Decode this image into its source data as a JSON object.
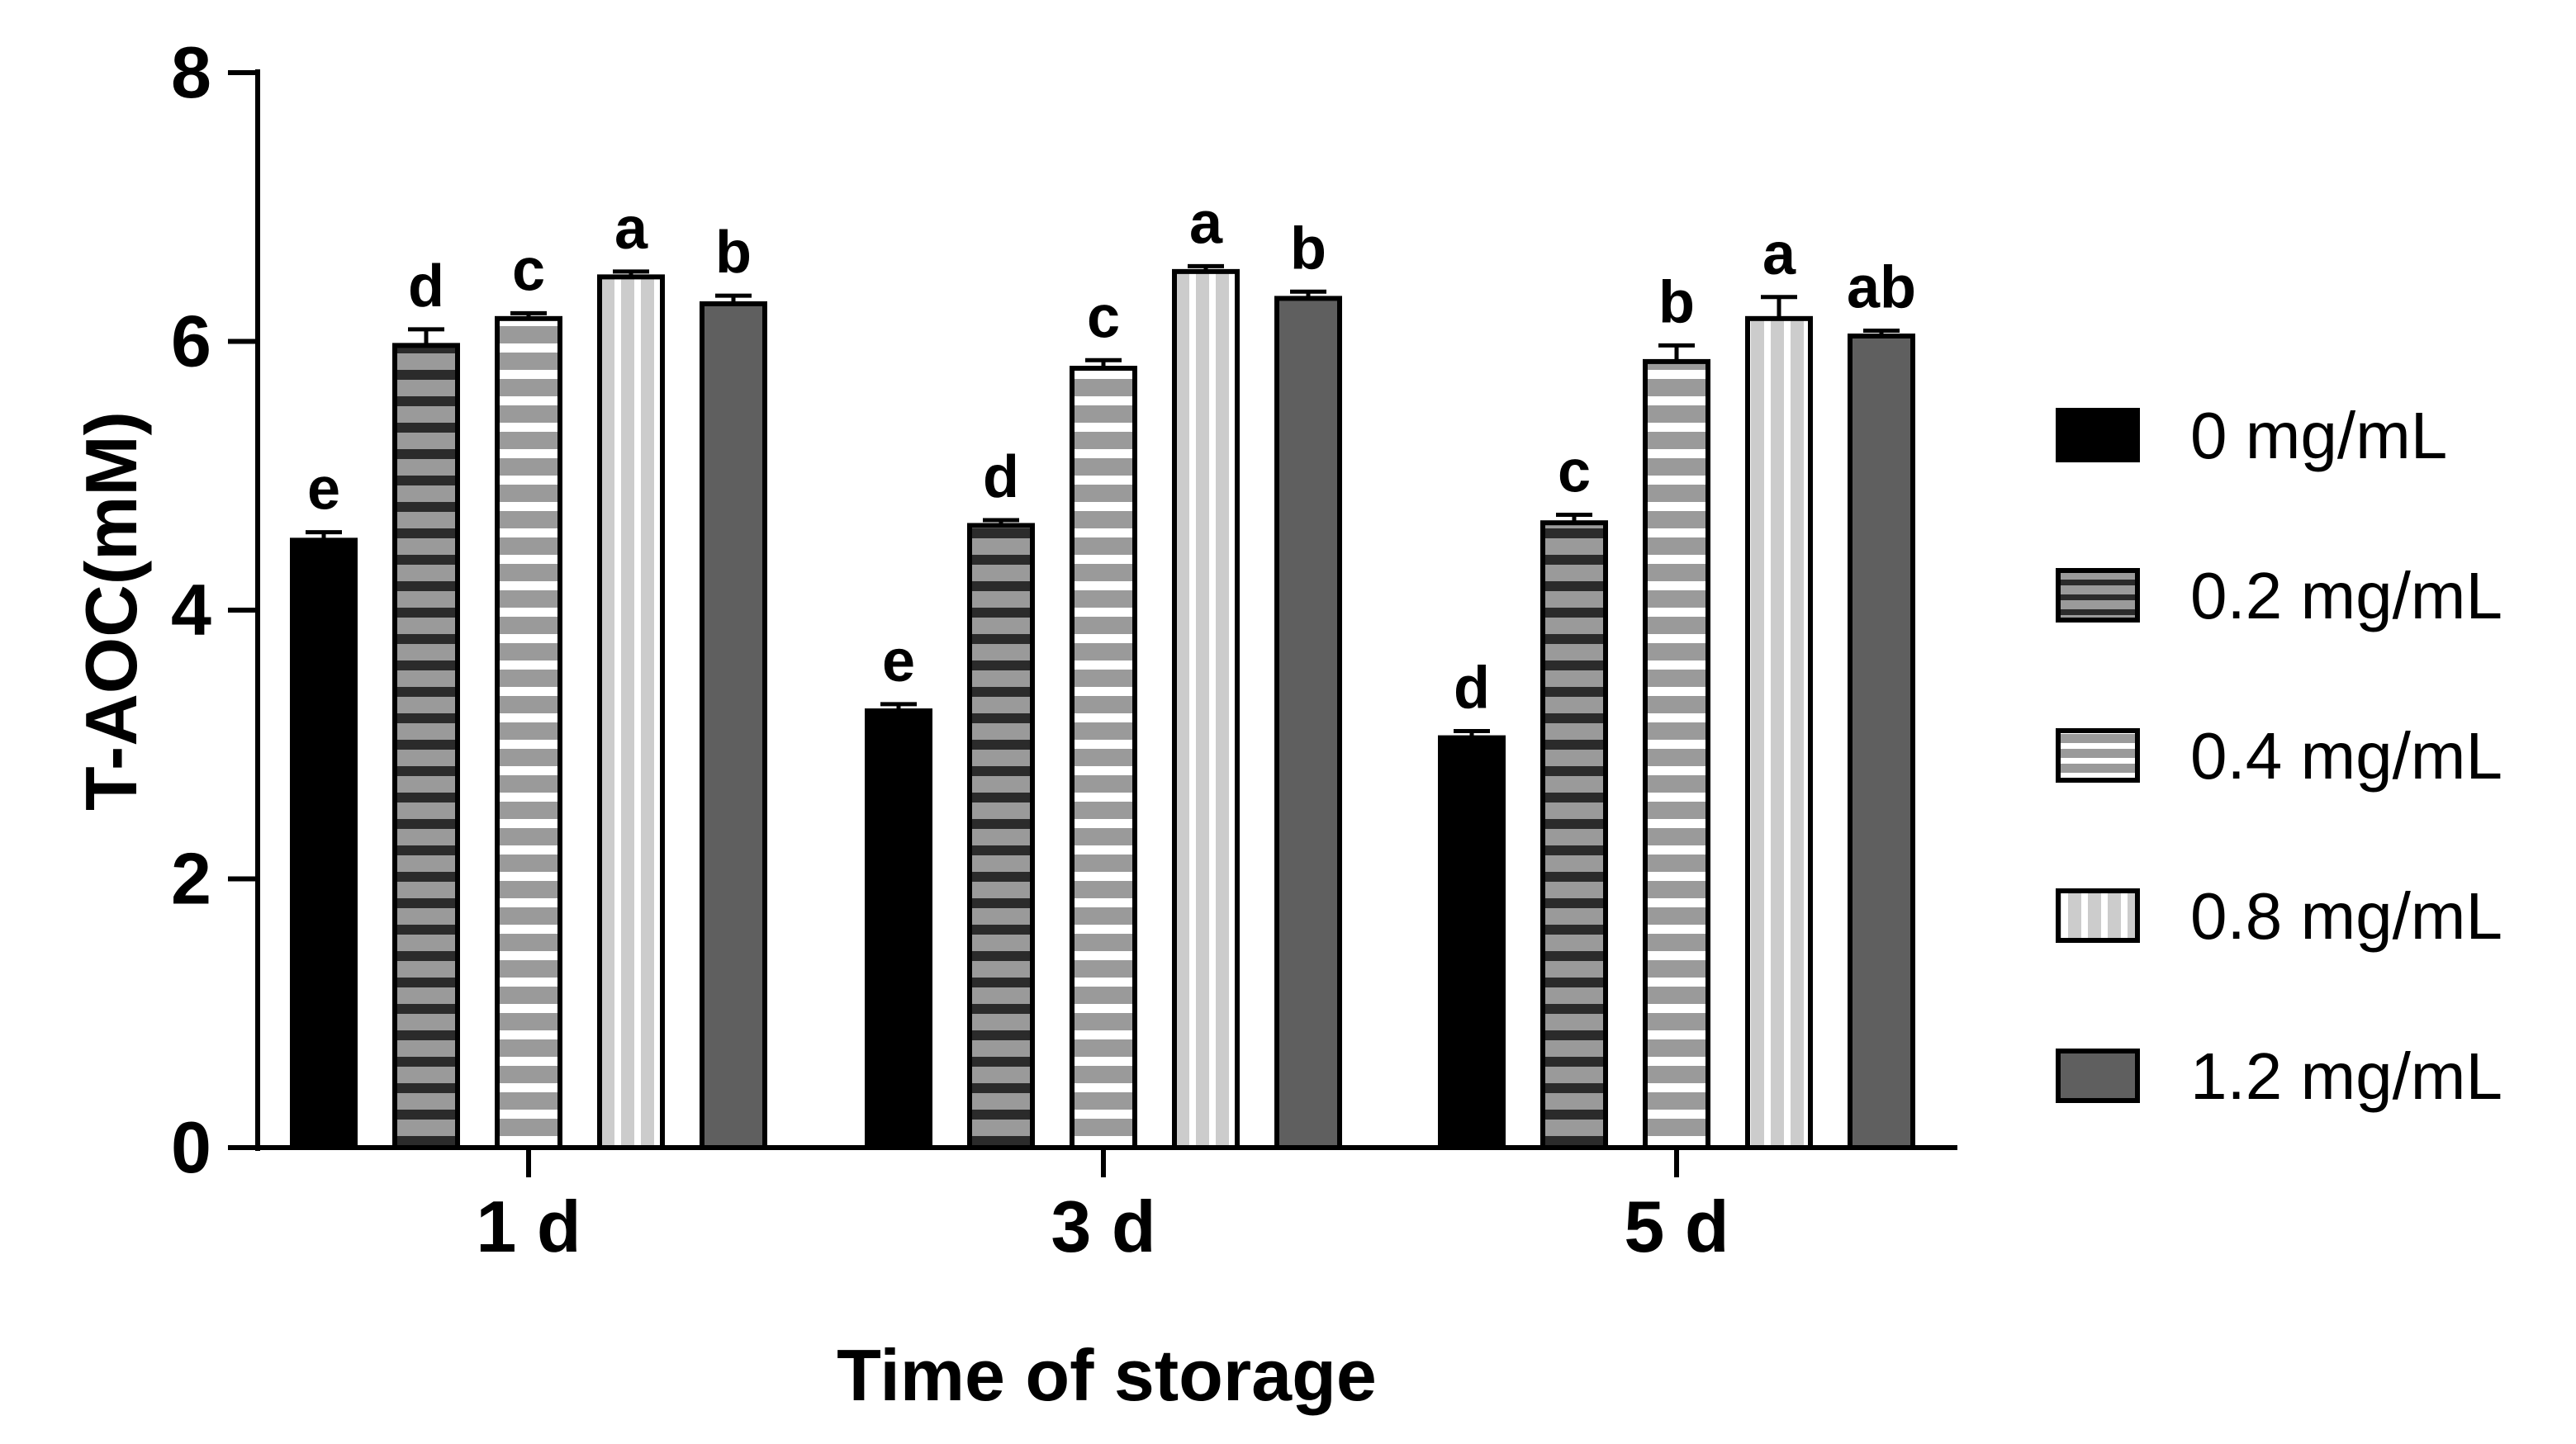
{
  "chart_data": {
    "type": "bar",
    "xlabel": "Time of storage",
    "ylabel": "T-AOC(mM)",
    "ylim": [
      0,
      8
    ],
    "yticks": [
      0,
      2,
      4,
      6,
      8
    ],
    "categories": [
      "1 d",
      "3 d",
      "5 d"
    ],
    "legend_position": "right",
    "series": [
      {
        "name": "0 mg/mL",
        "pattern": "solid-black",
        "values": [
          4.52,
          3.25,
          3.05
        ],
        "errors": [
          0.06,
          0.05,
          0.05
        ],
        "labels": [
          "e",
          "e",
          "d"
        ]
      },
      {
        "name": "0.2 mg/mL",
        "pattern": "gray-black-stripes",
        "values": [
          5.97,
          4.63,
          4.65
        ],
        "errors": [
          0.12,
          0.04,
          0.06
        ],
        "labels": [
          "d",
          "d",
          "c"
        ]
      },
      {
        "name": "0.4 mg/mL",
        "pattern": "gray-white-stripes",
        "values": [
          6.17,
          5.8,
          5.85
        ],
        "errors": [
          0.04,
          0.06,
          0.12
        ],
        "labels": [
          "c",
          "c",
          "b"
        ]
      },
      {
        "name": "0.8 mg/mL",
        "pattern": "vertical-stripes",
        "values": [
          6.48,
          6.52,
          6.17
        ],
        "errors": [
          0.04,
          0.04,
          0.16
        ],
        "labels": [
          "a",
          "a",
          "a"
        ]
      },
      {
        "name": "1.2 mg/mL",
        "pattern": "solid-darkgray",
        "values": [
          6.28,
          6.32,
          6.04
        ],
        "errors": [
          0.06,
          0.05,
          0.04
        ],
        "labels": [
          "b",
          "b",
          "ab"
        ]
      }
    ],
    "colors": {
      "axis": "#000000",
      "black_bar": "#000000",
      "dark_gray_bar": "#5f5f5f",
      "mid_gray": "#9a9a9a",
      "light_gray": "#cccccc",
      "stripe_dark": "#2b2b2b"
    }
  }
}
